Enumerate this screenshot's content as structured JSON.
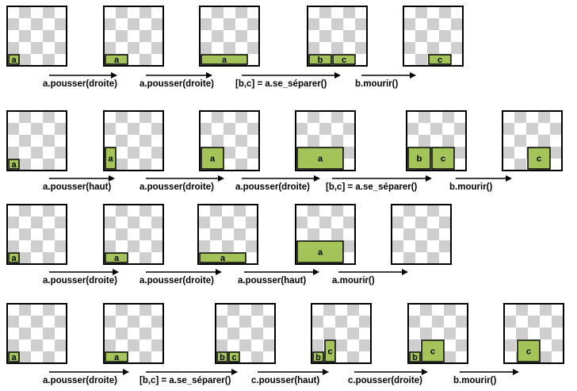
{
  "rows": [
    {
      "id": "row-1",
      "panels": [
        {
          "blocks": [
            {
              "label": "a",
              "col": 0,
              "row": 0,
              "w": 1,
              "h": 1
            }
          ]
        },
        {
          "blocks": [
            {
              "label": "a",
              "col": 0,
              "row": 0,
              "w": 2,
              "h": 1
            }
          ]
        },
        {
          "blocks": [
            {
              "label": "a",
              "col": 0,
              "row": 0,
              "w": 4,
              "h": 1
            }
          ]
        },
        {
          "blocks": [
            {
              "label": "b",
              "col": 0,
              "row": 0,
              "w": 2,
              "h": 1
            },
            {
              "label": "c",
              "col": 2,
              "row": 0,
              "w": 2,
              "h": 1
            }
          ]
        },
        {
          "blocks": [
            {
              "label": "c",
              "col": 2,
              "row": 0,
              "w": 2,
              "h": 1
            }
          ]
        }
      ],
      "operations": [
        "a.pousser(droite)",
        "a.pousser(droite)",
        "[b,c] = a.se_séparer()",
        "b.mourir()"
      ]
    },
    {
      "id": "row-2",
      "panels": [
        {
          "blocks": [
            {
              "label": "a",
              "col": 0,
              "row": 0,
              "w": 1,
              "h": 1
            }
          ]
        },
        {
          "blocks": [
            {
              "label": "a",
              "col": 0,
              "row": 0,
              "w": 1,
              "h": 2
            }
          ]
        },
        {
          "blocks": [
            {
              "label": "a",
              "col": 0,
              "row": 0,
              "w": 2,
              "h": 2
            }
          ]
        },
        {
          "blocks": [
            {
              "label": "a",
              "col": 0,
              "row": 0,
              "w": 4,
              "h": 2
            }
          ]
        },
        {
          "blocks": [
            {
              "label": "b",
              "col": 0,
              "row": 0,
              "w": 2,
              "h": 2
            },
            {
              "label": "c",
              "col": 2,
              "row": 0,
              "w": 2,
              "h": 2
            }
          ]
        },
        {
          "blocks": [
            {
              "label": "c",
              "col": 2,
              "row": 0,
              "w": 2,
              "h": 2
            }
          ]
        }
      ],
      "operations": [
        "a.pousser(haut)",
        "a.pousser(droite)",
        "a.pousser(droite)",
        "[b,c] = a.se_séparer()",
        "b.mourir()"
      ]
    },
    {
      "id": "row-3",
      "panels": [
        {
          "blocks": [
            {
              "label": "a",
              "col": 0,
              "row": 0,
              "w": 1,
              "h": 1
            }
          ]
        },
        {
          "blocks": [
            {
              "label": "a",
              "col": 0,
              "row": 0,
              "w": 2,
              "h": 1
            }
          ]
        },
        {
          "blocks": [
            {
              "label": "a",
              "col": 0,
              "row": 0,
              "w": 4,
              "h": 1
            }
          ]
        },
        {
          "blocks": [
            {
              "label": "a",
              "col": 0,
              "row": 0,
              "w": 4,
              "h": 2
            }
          ]
        },
        {
          "blocks": []
        }
      ],
      "operations": [
        "a.pousser(droite)",
        "a.pousser(droite)",
        "a.pousser(haut)",
        "a.mourir()"
      ]
    },
    {
      "id": "row-4",
      "panels": [
        {
          "blocks": [
            {
              "label": "a",
              "col": 0,
              "row": 0,
              "w": 1,
              "h": 1
            }
          ]
        },
        {
          "blocks": [
            {
              "label": "a",
              "col": 0,
              "row": 0,
              "w": 2,
              "h": 1
            }
          ]
        },
        {
          "blocks": [
            {
              "label": "b",
              "col": 0,
              "row": 0,
              "w": 1,
              "h": 1
            },
            {
              "label": "c",
              "col": 1,
              "row": 0,
              "w": 1,
              "h": 1
            }
          ]
        },
        {
          "blocks": [
            {
              "label": "b",
              "col": 0,
              "row": 0,
              "w": 1,
              "h": 1
            },
            {
              "label": "c",
              "col": 1,
              "row": 0,
              "w": 1,
              "h": 2
            }
          ]
        },
        {
          "blocks": [
            {
              "label": "b",
              "col": 0,
              "row": 0,
              "w": 1,
              "h": 1
            },
            {
              "label": "c",
              "col": 1,
              "row": 0,
              "w": 2,
              "h": 2
            }
          ]
        },
        {
          "blocks": [
            {
              "label": "c",
              "col": 1,
              "row": 0,
              "w": 2,
              "h": 2
            }
          ]
        }
      ],
      "operations": [
        "a.pousser(droite)",
        "[b,c] = a.se_séparer()",
        "c.pousser(haut)",
        "c.pousser(droite)",
        "b.mourir()"
      ]
    }
  ],
  "colors": {
    "block_fill": "#a4c45a",
    "checker_light": "#ffffff",
    "checker_dark": "#cfcfcf",
    "stroke": "#000000"
  }
}
